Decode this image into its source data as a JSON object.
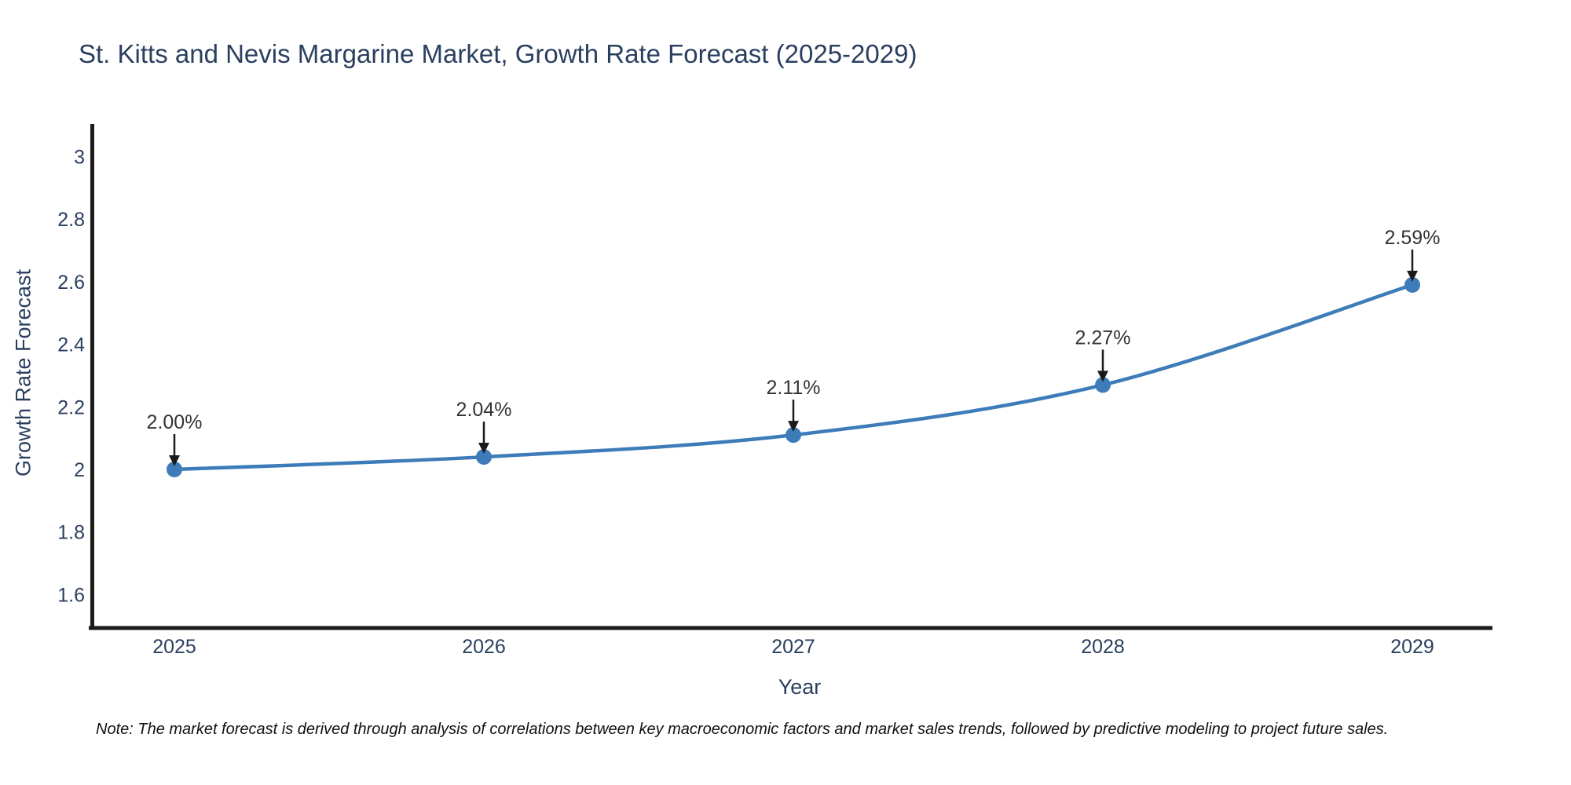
{
  "title": {
    "text": "St. Kitts and Nevis Margarine Market, Growth Rate Forecast (2025-2029)",
    "color": "#2a3f5f"
  },
  "note": {
    "text": "Note: The market forecast is derived through analysis of correlations between key macroeconomic factors and market sales trends, followed by predictive modeling to project future sales."
  },
  "chart_data": {
    "type": "line",
    "line_shape": "spline",
    "title": "St. Kitts and Nevis Margarine Market, Growth Rate Forecast (2025-2029)",
    "xlabel": "Year",
    "ylabel": "Growth Rate Forecast",
    "categories": [
      "2025",
      "2026",
      "2027",
      "2028",
      "2029"
    ],
    "values": [
      2.0,
      2.04,
      2.11,
      2.27,
      2.59
    ],
    "point_labels": [
      "2.00%",
      "2.04%",
      "2.11%",
      "2.27%",
      "2.59%"
    ],
    "series_name": "Growth Rate Forecast",
    "y_ticks": [
      3,
      2.8,
      2.6,
      2.4,
      2.2,
      2,
      1.8,
      1.6
    ],
    "y_tick_labels": [
      "3",
      "2.8",
      "2.6",
      "2.4",
      "2.2",
      "2",
      "1.8",
      "1.6"
    ],
    "ylim": [
      1.48,
      3.1
    ],
    "grid": false,
    "legend_position": "none",
    "annotation_arrows": true,
    "line_color": "#3d7cb8",
    "marker_color": "#3d7cb8",
    "axis_color": "#1a1a1a",
    "tick_color": "#2a3f5f",
    "annotation_color": "#333333"
  }
}
